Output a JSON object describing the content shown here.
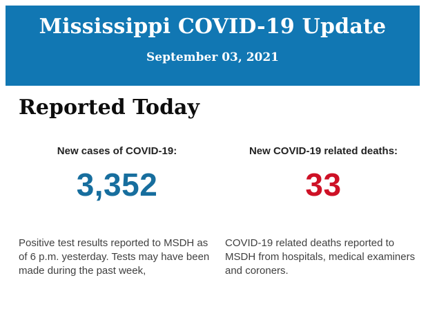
{
  "header": {
    "title": "Mississippi COVID-19 Update",
    "date": "September 03, 2021",
    "background_color": "#1177B3",
    "text_color": "#FFFFFF"
  },
  "section": {
    "title": "Reported Today"
  },
  "stats": [
    {
      "label": "New cases of COVID-19:",
      "value": "3,352",
      "value_color": "#176E9E",
      "description": "Positive test results reported to MSDH as\nof 6 p.m. yesterday. Tests may have been\nmade during the past week,"
    },
    {
      "label": "New COVID-19 related deaths:",
      "value": "33",
      "value_color": "#CE1126",
      "description": "COVID-19 related deaths reported to\nMSDH from hospitals, medical examiners\nand coroners."
    }
  ]
}
